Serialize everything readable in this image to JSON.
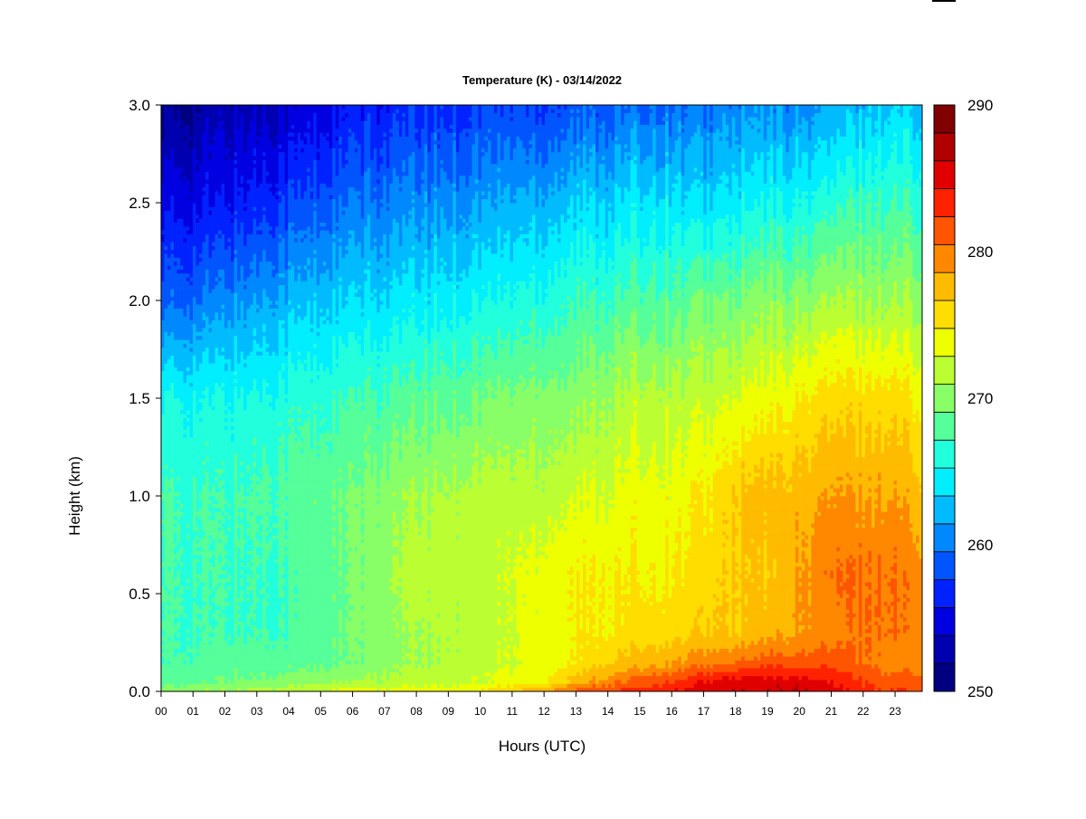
{
  "chart_data": {
    "type": "heatmap",
    "title": "Temperature (K) - 03/14/2022",
    "xlabel": "Hours (UTC)",
    "ylabel": "Height (km)",
    "xlim": [
      0,
      23.85
    ],
    "ylim": [
      0.0,
      3.0
    ],
    "x_ticks": [
      "00",
      "01",
      "02",
      "03",
      "04",
      "05",
      "06",
      "07",
      "08",
      "09",
      "10",
      "11",
      "12",
      "13",
      "14",
      "15",
      "16",
      "17",
      "18",
      "19",
      "20",
      "21",
      "22",
      "23"
    ],
    "y_ticks": [
      "0.0",
      "0.5",
      "1.0",
      "1.5",
      "2.0",
      "2.5",
      "3.0"
    ],
    "colorbar": {
      "min": 250,
      "max": 290,
      "step": 2,
      "tick_labels": [
        "250",
        "260",
        "270",
        "280",
        "290"
      ],
      "colors": [
        "#000080",
        "#0000b0",
        "#0000e0",
        "#0022ff",
        "#0055ff",
        "#0088ff",
        "#00bbff",
        "#00eeff",
        "#22ffdd",
        "#55ff99",
        "#88ff66",
        "#bbff33",
        "#eeff00",
        "#ffdd00",
        "#ffbb00",
        "#ff8800",
        "#ff5500",
        "#ff2200",
        "#e00000",
        "#b00000",
        "#800000"
      ]
    },
    "temperature_grid": {
      "x_hours": [
        0,
        2,
        4,
        6,
        8,
        10,
        12,
        13,
        14,
        15,
        16,
        17,
        18,
        19,
        20,
        21,
        22,
        23,
        23.85
      ],
      "heights_km": [
        0.0,
        0.05,
        0.15,
        0.3,
        0.6,
        1.0,
        1.5,
        2.0,
        2.5,
        3.0
      ],
      "values_K": [
        [
          271,
          272,
          273,
          275,
          275,
          276,
          280,
          283,
          284,
          285,
          286,
          287,
          288,
          288,
          288,
          287,
          285,
          284,
          284
        ],
        [
          269,
          270,
          271,
          272,
          273,
          274,
          276,
          279,
          281,
          283,
          284,
          286,
          287,
          287,
          287,
          286,
          284,
          283,
          283
        ],
        [
          268,
          269,
          269,
          270,
          272,
          273,
          275,
          276,
          278,
          279,
          280,
          281,
          282,
          283,
          283,
          283,
          282,
          281,
          281
        ],
        [
          268,
          268,
          268,
          270,
          272,
          273,
          275,
          276,
          276,
          277,
          277,
          278,
          278,
          279,
          280,
          281,
          282,
          282,
          281
        ],
        [
          268,
          268,
          268,
          270,
          273,
          273,
          275,
          276,
          276,
          276,
          276,
          277,
          278,
          278,
          280,
          282,
          282,
          282,
          281
        ],
        [
          268,
          268,
          269,
          270,
          272,
          273,
          273,
          274,
          274,
          275,
          275,
          276,
          278,
          279,
          279,
          280,
          280,
          280,
          279
        ],
        [
          266,
          266,
          267,
          268,
          269,
          270,
          271,
          271,
          272,
          273,
          273,
          273,
          274,
          275,
          276,
          277,
          277,
          277,
          276
        ],
        [
          259,
          261,
          263,
          264,
          265,
          266,
          267,
          268,
          268,
          269,
          269,
          270,
          270,
          271,
          271,
          272,
          272,
          272,
          272
        ],
        [
          255,
          256,
          258,
          260,
          261,
          262,
          263,
          264,
          264,
          265,
          265,
          264,
          265,
          266,
          266,
          267,
          268,
          268,
          268
        ],
        [
          251,
          253,
          254,
          256,
          257,
          258,
          258,
          259,
          259,
          260,
          260,
          260,
          261,
          261,
          261,
          262,
          263,
          264,
          264
        ]
      ]
    }
  }
}
